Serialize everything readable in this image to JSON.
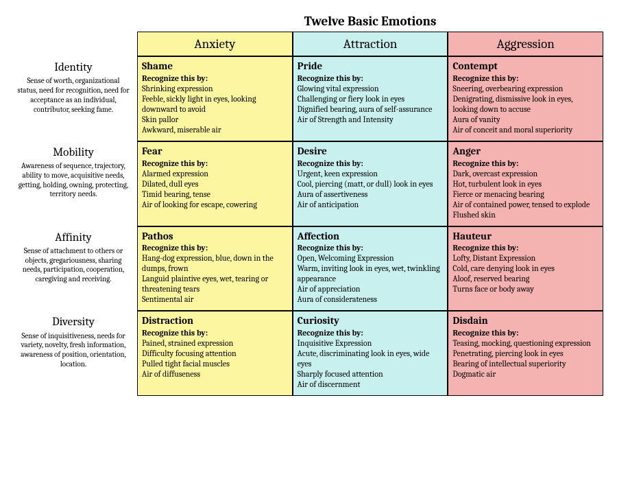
{
  "title": "Twelve Basic Emotions",
  "recognize_label": "Recognize this by:",
  "columns": [
    {
      "label": "Anxiety",
      "color": "#fdf6a0"
    },
    {
      "label": "Attraction",
      "color": "#c8f0ef"
    },
    {
      "label": "Aggression",
      "color": "#f4b2b0"
    }
  ],
  "rows": [
    {
      "title": "Identity",
      "desc": "Sense of worth, organizational status, need for recognition, need for acceptance as an individual, contributor, seeking fame.",
      "cells": [
        {
          "emotion": "Shame",
          "lines": [
            "Shrinking expression",
            "Feeble, sickly light in eyes, looking downward to avoid",
            "Skin pallor",
            "Awkward, miserable air"
          ]
        },
        {
          "emotion": "Pride",
          "lines": [
            "Glowing vital expression",
            "Challenging or fiery look in eyes",
            "Dignified bearing, aura of self-assurance",
            "Air of Strength and Intensity"
          ]
        },
        {
          "emotion": "Contempt",
          "lines": [
            "Sneering, overbearing expression",
            "Denigrating, dismissive look in eyes, looking down to accuse",
            "Aura of vanity",
            "Air of conceit and moral superiority"
          ]
        }
      ]
    },
    {
      "title": "Mobility",
      "desc": "Awareness of sequence, trajectory, ability to move, acquisitive needs, getting, holding, owning, protecting, territory needs.",
      "cells": [
        {
          "emotion": "Fear",
          "lines": [
            "Alarmed expression",
            "Dilated, dull eyes",
            "Timid bearing, tense",
            "Air of looking for escape, cowering"
          ]
        },
        {
          "emotion": "Desire",
          "lines": [
            "Urgent, keen expression",
            "Cool, piercing (matt, or dull) look in eyes",
            "Aura of assertiveness",
            "Air of anticipation"
          ]
        },
        {
          "emotion": "Anger",
          "lines": [
            "Dark, overcast expression",
            "Hot, turbulent look in eyes",
            "Fierce or menacing bearing",
            "Air of contained power, tensed to explode",
            "Flushed skin"
          ]
        }
      ]
    },
    {
      "title": "Affinity",
      "desc": "Sense of attachment to others or objects, gregariousness, sharing needs, participation, cooperation, caregiving and receiving.",
      "cells": [
        {
          "emotion": "Pathos",
          "lines": [
            "Hang-dog expression, blue, down in the dumps, frown",
            "Languid plaintive eyes, wet, tearing or threatening tears",
            "Sentimental air"
          ]
        },
        {
          "emotion": "Affection",
          "lines": [
            "Open, Welcoming Expression",
            "Warm, inviting look in eyes, wet, twinkling appearance",
            "Air of appreciation",
            "Aura of considerateness"
          ]
        },
        {
          "emotion": "Hauteur",
          "lines": [
            "Lofty, Distant Expression",
            "Cold, care denying look in eyes",
            "Aloof, reserved bearing",
            "Turns face or body away"
          ]
        }
      ]
    },
    {
      "title": "Diversity",
      "desc": "Sense of inquisitiveness, needs for variety, novelty, fresh information, awareness of position, orientation, location.",
      "cells": [
        {
          "emotion": "Distraction",
          "lines": [
            "Pained, strained expression",
            "Difficulty focusing attention",
            "Pulled tight facial muscles",
            "Air of diffuseness"
          ]
        },
        {
          "emotion": "Curiosity",
          "lines": [
            "Inquisitive Expression",
            "Acute, discriminating look in eyes, wide eyes",
            "Sharply focused attention",
            "Air of discernment"
          ]
        },
        {
          "emotion": "Disdain",
          "lines": [
            "Teasing, mocking, questioning expression",
            "Penetrating, piercing look in eyes",
            "Bearing of intellectual superiority",
            "Dogmatic air"
          ]
        }
      ]
    }
  ]
}
